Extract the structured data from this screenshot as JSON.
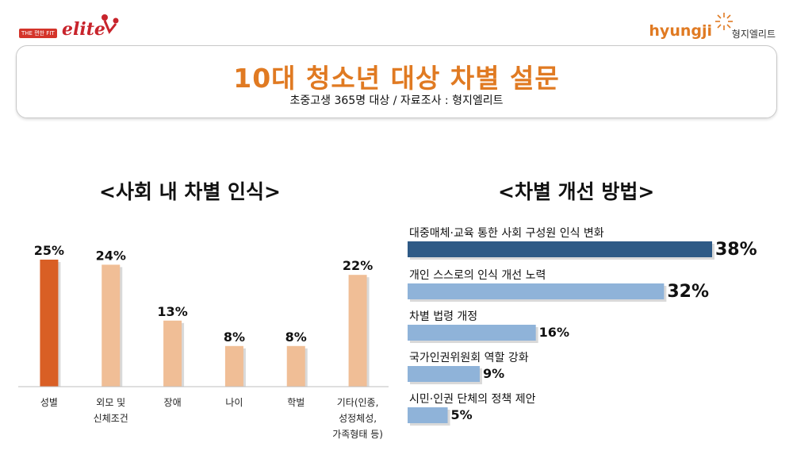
{
  "logos": {
    "left_tag": "THE 편한 FIT",
    "left_word": "elite",
    "right_word": "hyungji",
    "right_kr": "형지엘리트"
  },
  "header": {
    "title": "10대 청소년 대상 차별 설문",
    "subtitle": "초중고생 365명 대상 / 자료조사 : 형지엘리트"
  },
  "colors": {
    "accent_orange": "#e07a22",
    "bar_highlight": "#d95f25",
    "bar_light": "#f0be96",
    "bar_dark_blue": "#2e5a86",
    "bar_light_blue": "#8fb3d9"
  },
  "chart_data": [
    {
      "type": "bar",
      "title": "<사회 내 차별 인식>",
      "categories": [
        "성별",
        "외모 및\n신체조건",
        "장애",
        "나이",
        "학벌",
        "기타(인종,\n성정체성,\n가족형태 등)"
      ],
      "values": [
        25,
        24,
        13,
        8,
        8,
        22
      ],
      "value_labels": [
        "25%",
        "24%",
        "13%",
        "8%",
        "8%",
        "22%"
      ],
      "ylim": [
        0,
        30
      ],
      "highlight_index": 0
    },
    {
      "type": "bar",
      "orientation": "horizontal",
      "title": "<차별 개선 방법>",
      "categories": [
        "대중매체·교육 통한 사회 구성원 인식 변화",
        "개인 스스로의 인식 개선 노력",
        "차별 법령 개정",
        "국가인권위원회 역할 강화",
        "시민·인권 단체의 정책 제안"
      ],
      "values": [
        38,
        32,
        16,
        9,
        5
      ],
      "value_labels": [
        "38%",
        "32%",
        "16%",
        "9%",
        "5%"
      ],
      "xlim": [
        0,
        40
      ],
      "highlight_index": 0
    }
  ]
}
